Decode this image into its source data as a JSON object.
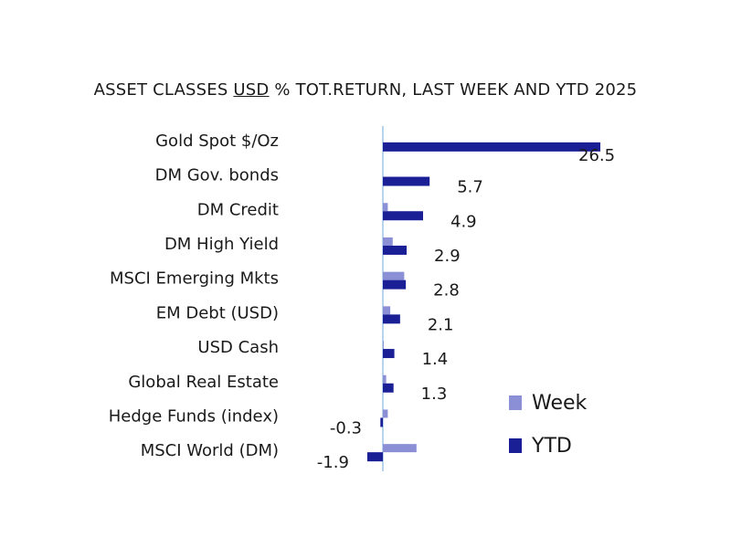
{
  "chart_data": {
    "type": "bar",
    "orientation": "horizontal",
    "title_parts": [
      "ASSET CLASSES ",
      "USD",
      " % TOT.RETURN, LAST WEEK AND YTD 2025"
    ],
    "categories": [
      "Gold Spot   $/Oz",
      "DM Gov. bonds",
      "DM Credit",
      "DM High Yield",
      "MSCI Emerging Mkts",
      "EM Debt (USD)",
      "USD Cash",
      "Global Real Estate",
      "Hedge Funds (index)",
      "MSCI World (DM)"
    ],
    "series": [
      {
        "name": "Week",
        "color": "#8b8fd6",
        "values": [
          0,
          0,
          0.6,
          1.2,
          2.6,
          0.9,
          0.1,
          0.4,
          0.6,
          4.1
        ]
      },
      {
        "name": "YTD",
        "color": "#1a1f96",
        "values": [
          26.5,
          5.7,
          4.9,
          2.9,
          2.8,
          2.1,
          1.4,
          1.3,
          -0.3,
          -1.9
        ]
      }
    ],
    "data_labels": [
      "26.5",
      "5.7",
      "4.9",
      "2.9",
      "2.8",
      "2.1",
      "1.4",
      "1.3",
      "-0.3",
      "-1.9"
    ],
    "legend_position": "bottom-right",
    "grid": false
  }
}
